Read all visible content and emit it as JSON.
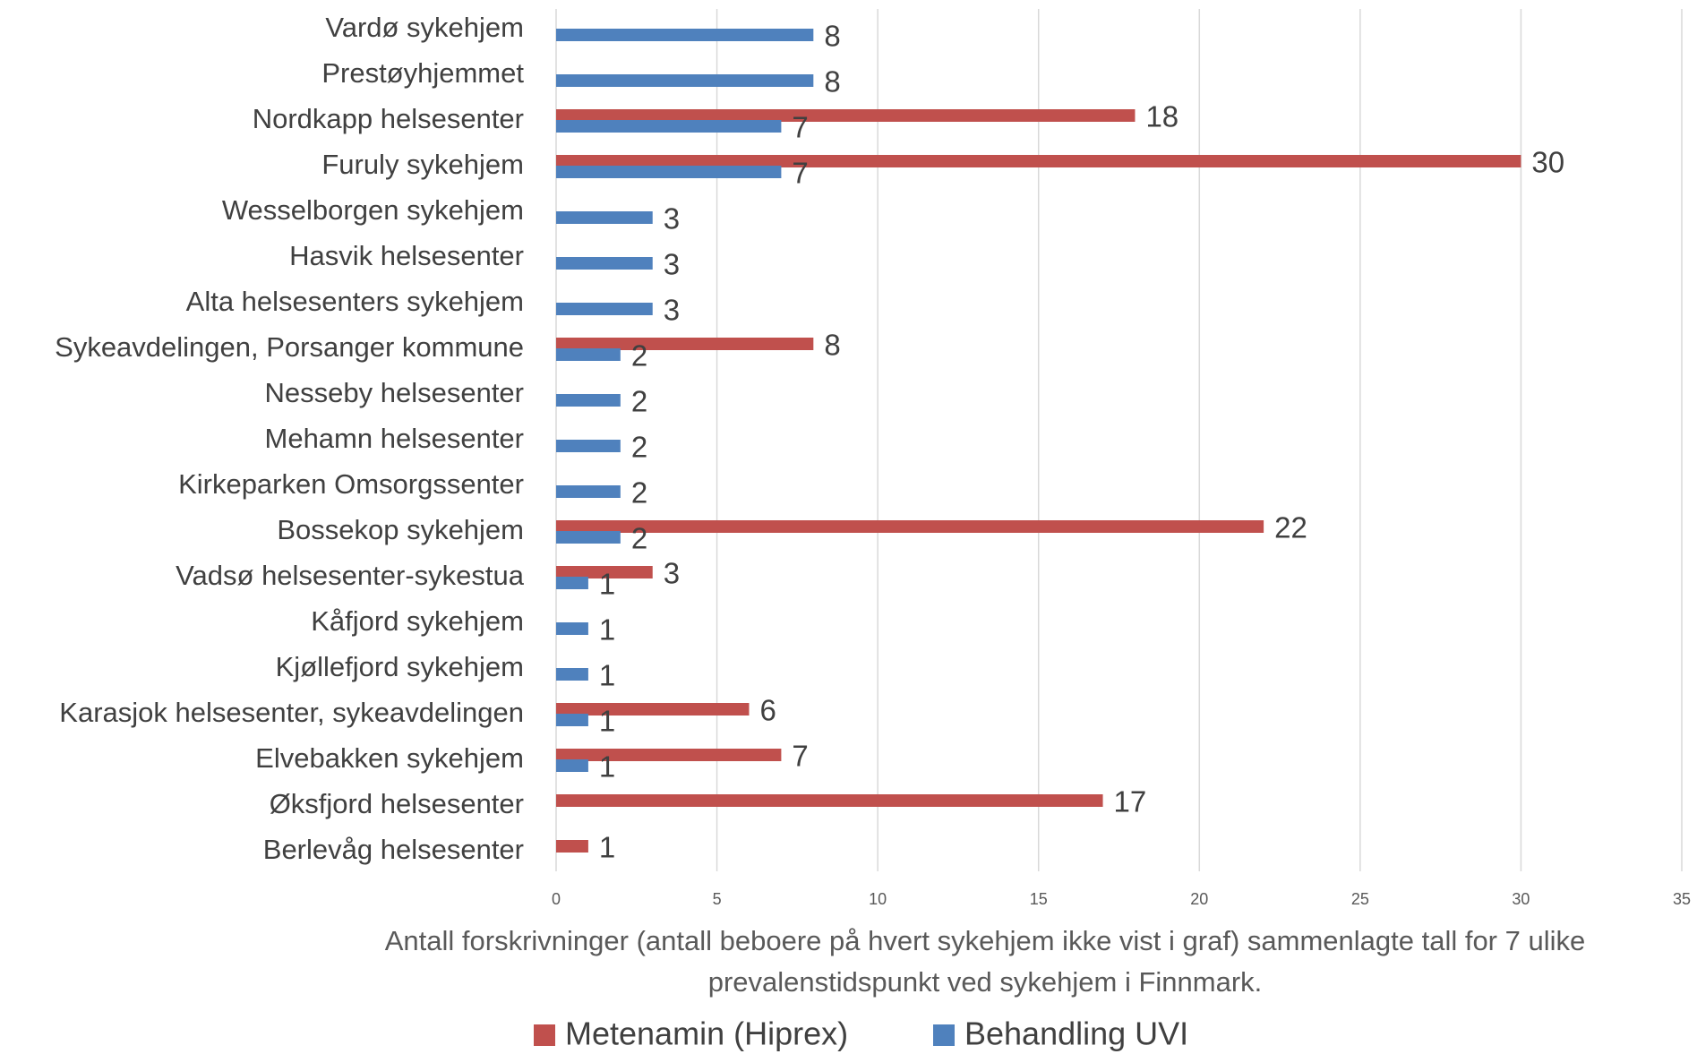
{
  "chart_data": {
    "type": "bar",
    "orientation": "horizontal",
    "x_label": "Antall forskrivninger (antall beboere på hvert sykehjem ikke vist i graf) sammenlagte tall for 7 ulike prevalenstidspunkt ved sykehjem i Finnmark.",
    "categories": [
      "Vardø sykehjem",
      "Prestøyhjemmet",
      "Nordkapp helsesenter",
      "Furuly sykehjem",
      "Wesselborgen sykehjem",
      "Hasvik helsesenter",
      "Alta helsesenters sykehjem",
      "Sykeavdelingen, Porsanger kommune",
      "Nesseby helsesenter",
      "Mehamn helsesenter",
      "Kirkeparken Omsorgssenter",
      "Bossekop sykehjem",
      "Vadsø helsesenter-sykestua",
      "Kåfjord sykehjem",
      "Kjøllefjord sykehjem",
      "Karasjok helsesenter, sykeavdelingen",
      "Elvebakken sykehjem",
      "Øksfjord helsesenter",
      "Berlevåg helsesenter"
    ],
    "series": [
      {
        "name": "Metenamin (Hiprex)",
        "color": "#c0504d",
        "values": [
          null,
          null,
          18,
          30,
          null,
          null,
          null,
          8,
          null,
          null,
          null,
          22,
          3,
          null,
          null,
          6,
          7,
          17,
          1
        ]
      },
      {
        "name": "Behandling UVI",
        "color": "#4f81bd",
        "values": [
          8,
          8,
          7,
          7,
          3,
          3,
          3,
          2,
          2,
          2,
          2,
          2,
          1,
          1,
          1,
          1,
          1,
          null,
          null
        ]
      }
    ],
    "xlim": [
      0,
      35
    ],
    "xticks": [
      0,
      5,
      10,
      15,
      20,
      25,
      30,
      35
    ],
    "grid": true,
    "legend": "bottom"
  }
}
